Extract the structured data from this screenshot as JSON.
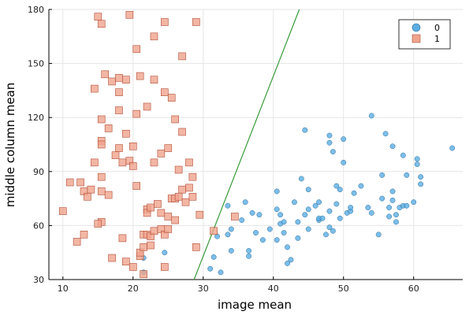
{
  "chart_data": {
    "type": "scatter",
    "xlabel": "image mean",
    "ylabel": "middle column mean",
    "xlim": [
      8,
      67
    ],
    "ylim": [
      30,
      180
    ],
    "xticks": [
      10,
      20,
      30,
      40,
      50,
      60
    ],
    "yticks": [
      30,
      60,
      90,
      120,
      150,
      180
    ],
    "grid": true,
    "legend_position": "top-right",
    "series": [
      {
        "name": "0",
        "marker": "circle",
        "color": "#5aaee4",
        "stroke": "#2f6f9c",
        "points": [
          [
            21.5,
            42
          ],
          [
            21.5,
            34
          ],
          [
            24.5,
            45
          ],
          [
            31,
            36
          ],
          [
            32.5,
            34
          ],
          [
            31.5,
            42.5
          ],
          [
            32,
            54
          ],
          [
            33.5,
            71
          ],
          [
            33.5,
            55
          ],
          [
            34,
            58
          ],
          [
            34,
            46
          ],
          [
            35.5,
            63
          ],
          [
            36,
            73
          ],
          [
            37,
            67
          ],
          [
            36.5,
            46
          ],
          [
            36.5,
            43
          ],
          [
            37.5,
            56
          ],
          [
            38,
            66
          ],
          [
            38.5,
            52
          ],
          [
            39.5,
            58
          ],
          [
            40.5,
            69
          ],
          [
            40.5,
            79
          ],
          [
            40.5,
            52
          ],
          [
            41,
            66
          ],
          [
            41,
            61
          ],
          [
            41.5,
            62
          ],
          [
            41.5,
            56
          ],
          [
            42,
            48
          ],
          [
            42,
            39
          ],
          [
            42.5,
            41
          ],
          [
            43,
            73
          ],
          [
            43.5,
            62
          ],
          [
            43.5,
            53
          ],
          [
            44,
            86
          ],
          [
            44.5,
            113
          ],
          [
            44.5,
            66
          ],
          [
            45,
            80
          ],
          [
            45,
            69
          ],
          [
            45,
            58
          ],
          [
            46,
            71
          ],
          [
            46.5,
            73
          ],
          [
            46.5,
            63
          ],
          [
            46.5,
            64
          ],
          [
            47,
            64
          ],
          [
            47.5,
            55
          ],
          [
            48,
            110
          ],
          [
            48,
            106
          ],
          [
            48,
            68
          ],
          [
            48,
            59
          ],
          [
            48.5,
            57
          ],
          [
            48.5,
            101
          ],
          [
            49,
            82
          ],
          [
            49,
            72
          ],
          [
            49.5,
            80
          ],
          [
            49.5,
            64
          ],
          [
            50,
            108
          ],
          [
            50,
            95
          ],
          [
            50.5,
            67
          ],
          [
            51,
            68
          ],
          [
            51,
            70
          ],
          [
            51.5,
            78
          ],
          [
            52.5,
            82
          ],
          [
            53.5,
            70
          ],
          [
            54,
            121
          ],
          [
            54,
            67
          ],
          [
            55,
            55
          ],
          [
            55.5,
            88
          ],
          [
            55.5,
            75
          ],
          [
            56,
            111
          ],
          [
            56.5,
            70
          ],
          [
            56.5,
            65
          ],
          [
            57,
            104
          ],
          [
            57,
            79
          ],
          [
            57,
            74
          ],
          [
            57.5,
            62
          ],
          [
            57.5,
            66
          ],
          [
            58,
            70
          ],
          [
            58.5,
            99
          ],
          [
            58.5,
            71
          ],
          [
            59,
            71
          ],
          [
            59,
            88
          ],
          [
            60,
            73
          ],
          [
            60.5,
            97
          ],
          [
            60.5,
            94
          ],
          [
            61,
            83
          ],
          [
            61,
            87
          ],
          [
            65.5,
            103
          ]
        ]
      },
      {
        "name": "1",
        "marker": "square",
        "color": "#f0a48d",
        "stroke": "#b04d35",
        "points": [
          [
            10,
            68
          ],
          [
            11,
            84
          ],
          [
            12,
            51
          ],
          [
            12.5,
            84
          ],
          [
            13,
            79
          ],
          [
            13,
            55
          ],
          [
            13.5,
            76
          ],
          [
            14,
            80
          ],
          [
            14.5,
            136
          ],
          [
            14.5,
            95
          ],
          [
            15,
            176
          ],
          [
            15.5,
            172
          ],
          [
            15.5,
            107
          ],
          [
            15.5,
            105
          ],
          [
            15.5,
            119
          ],
          [
            15.5,
            87
          ],
          [
            15.5,
            79
          ],
          [
            15.5,
            62
          ],
          [
            15,
            61
          ],
          [
            16,
            144
          ],
          [
            16.5,
            114
          ],
          [
            16.5,
            77
          ],
          [
            17,
            140
          ],
          [
            17,
            42
          ],
          [
            17.5,
            99
          ],
          [
            18,
            134
          ],
          [
            18,
            142
          ],
          [
            18,
            124
          ],
          [
            18,
            103
          ],
          [
            18.5,
            95
          ],
          [
            18.5,
            53
          ],
          [
            19,
            141
          ],
          [
            19,
            111
          ],
          [
            19,
            40
          ],
          [
            19.5,
            177
          ],
          [
            19.5,
            96
          ],
          [
            20,
            104
          ],
          [
            20,
            93
          ],
          [
            20,
            37
          ],
          [
            20.5,
            158
          ],
          [
            20.5,
            122
          ],
          [
            20.5,
            82
          ],
          [
            21,
            143
          ],
          [
            21,
            43
          ],
          [
            21,
            45
          ],
          [
            21.5,
            55
          ],
          [
            21.5,
            48
          ],
          [
            21.5,
            33
          ],
          [
            22,
            126
          ],
          [
            22,
            55
          ],
          [
            22,
            69
          ],
          [
            22,
            67
          ],
          [
            22.5,
            54
          ],
          [
            22.5,
            49
          ],
          [
            22.5,
            70
          ],
          [
            23,
            165
          ],
          [
            23,
            141
          ],
          [
            23,
            95
          ],
          [
            23,
            57
          ],
          [
            23.5,
            72
          ],
          [
            24,
            67
          ],
          [
            24,
            100
          ],
          [
            24,
            58
          ],
          [
            24.5,
            173
          ],
          [
            24.5,
            134
          ],
          [
            24.5,
            55
          ],
          [
            24.5,
            37
          ],
          [
            25,
            58
          ],
          [
            25,
            65
          ],
          [
            25,
            103
          ],
          [
            25.5,
            131
          ],
          [
            25.5,
            75
          ],
          [
            26,
            75
          ],
          [
            26,
            63
          ],
          [
            26,
            119
          ],
          [
            26.5,
            76
          ],
          [
            26.5,
            91
          ],
          [
            27,
            154
          ],
          [
            27,
            112
          ],
          [
            27,
            80
          ],
          [
            27.5,
            73
          ],
          [
            28,
            95
          ],
          [
            28,
            81
          ],
          [
            28.5,
            87
          ],
          [
            28.5,
            76
          ],
          [
            29,
            173
          ],
          [
            29,
            48
          ],
          [
            29.5,
            66
          ],
          [
            31.5,
            57
          ],
          [
            34.5,
            65
          ]
        ]
      }
    ],
    "fit_line": {
      "color": "#389c3a",
      "points": [
        [
          28.7,
          30
        ],
        [
          43.7,
          180
        ]
      ]
    }
  }
}
